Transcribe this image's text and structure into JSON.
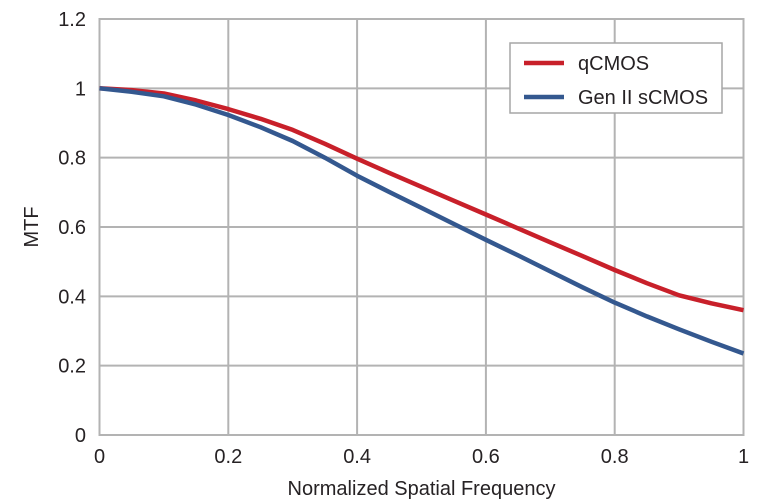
{
  "page": {
    "background": "#ffffff"
  },
  "chart_data": {
    "type": "line",
    "title": "",
    "xlabel": "Normalized Spatial Frequency",
    "ylabel": "MTF",
    "xlim": [
      0,
      1
    ],
    "ylim": [
      0,
      1.2
    ],
    "grid": true,
    "legend_position": "top-right",
    "x": [
      0,
      0.05,
      0.1,
      0.15,
      0.2,
      0.25,
      0.3,
      0.35,
      0.4,
      0.45,
      0.5,
      0.55,
      0.6,
      0.65,
      0.7,
      0.75,
      0.8,
      0.85,
      0.9,
      0.95,
      1
    ],
    "series": [
      {
        "name": "qCMOS",
        "color": "#c8202a",
        "values": [
          1.0,
          0.995,
          0.985,
          0.965,
          0.94,
          0.912,
          0.88,
          0.84,
          0.797,
          0.756,
          0.716,
          0.676,
          0.636,
          0.596,
          0.556,
          0.516,
          0.476,
          0.438,
          0.403,
          0.38,
          0.36
        ]
      },
      {
        "name": "Gen II sCMOS",
        "color": "#34588f",
        "values": [
          1.0,
          0.99,
          0.977,
          0.953,
          0.923,
          0.888,
          0.848,
          0.8,
          0.748,
          0.701,
          0.655,
          0.609,
          0.563,
          0.518,
          0.472,
          0.426,
          0.382,
          0.342,
          0.305,
          0.269,
          0.235
        ]
      }
    ],
    "x_ticks": [
      {
        "label": "0",
        "value": 0
      },
      {
        "label": "0.2",
        "value": 0.2
      },
      {
        "label": "0.4",
        "value": 0.4
      },
      {
        "label": "0.6",
        "value": 0.6
      },
      {
        "label": "0.8",
        "value": 0.8
      },
      {
        "label": "1",
        "value": 1
      }
    ],
    "y_ticks": [
      {
        "label": "0",
        "value": 0
      },
      {
        "label": "0.2",
        "value": 0.2
      },
      {
        "label": "0.4",
        "value": 0.4
      },
      {
        "label": "0.6",
        "value": 0.6
      },
      {
        "label": "0.8",
        "value": 0.8
      },
      {
        "label": "1",
        "value": 1
      },
      {
        "label": "1.2",
        "value": 1.2
      }
    ],
    "styles": {
      "grid_color": "#b3b3b3",
      "border_color": "#b3b3b3",
      "text_color": "#262224",
      "legend_border_color": "#a6a6a6",
      "legend_background": "#ffffff"
    }
  }
}
